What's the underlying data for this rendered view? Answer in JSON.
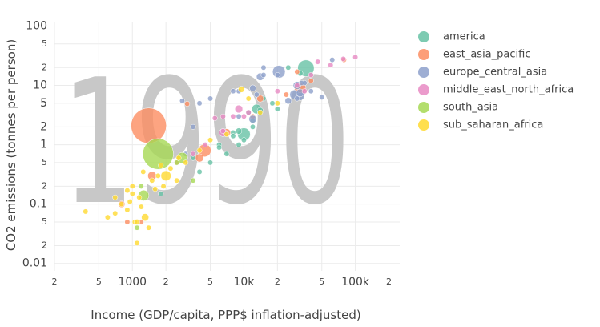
{
  "chart_data": {
    "type": "scatter",
    "year_label": "1990",
    "xlabel": "Income (GDP/capita, PPP$ inflation-adjusted)",
    "ylabel": "CO2 emissions (tonnes per person)",
    "log_x": true,
    "log_y": true,
    "grid": true,
    "legend": "right",
    "xlim": [
      200,
      250000
    ],
    "ylim": [
      0.0075,
      115
    ],
    "xticks": [
      {
        "value": 200,
        "label": "2"
      },
      {
        "value": 500,
        "label": "5"
      },
      1000,
      {
        "value": 2000,
        "label": "2"
      },
      {
        "value": 5000,
        "label": "5"
      },
      {
        "value": 10000,
        "label": "10k"
      },
      {
        "value": 20000,
        "label": "2"
      },
      {
        "value": 50000,
        "label": "5"
      },
      {
        "value": 100000,
        "label": "100k"
      },
      {
        "value": 200000,
        "label": "2"
      }
    ],
    "yticks": [
      0.01,
      {
        "value": 0.02,
        "label": "2"
      },
      {
        "value": 0.05,
        "label": "5"
      },
      0.1,
      {
        "value": 0.2,
        "label": "2"
      },
      {
        "value": 0.5,
        "label": "5"
      },
      1,
      2,
      5,
      10,
      {
        "value": 20,
        "label": "2"
      },
      {
        "value": 50,
        "label": "5"
      },
      100
    ],
    "series": [
      {
        "name": "america",
        "color": "#66c2a5",
        "x": [
          36000,
          32000,
          13000,
          10000,
          14000,
          12000,
          9000,
          15000,
          6000,
          5000,
          4000,
          1800,
          6000,
          8000,
          11000,
          9000,
          12000,
          10000,
          7000,
          3500,
          8000,
          18000,
          25000,
          14000,
          20000
        ],
        "values": [
          19.5,
          16,
          4,
          1.5,
          3.8,
          2.5,
          1.7,
          6,
          1.0,
          0.5,
          0.35,
          0.15,
          0.9,
          1.6,
          3.5,
          1.0,
          2.0,
          1.2,
          0.7,
          0.6,
          1.4,
          5,
          20,
          3.5,
          4
        ],
        "sizes": [
          250,
          28,
          85,
          150,
          33,
          13,
          35,
          20,
          22,
          7,
          6,
          7,
          9,
          10,
          3,
          4,
          4,
          3,
          5,
          4,
          7,
          10,
          1.2,
          2.4,
          0.3
        ]
      },
      {
        "name": "east_asia_pacific",
        "color": "#fc8d62",
        "x": [
          1400,
          32000,
          30000,
          4450,
          14000,
          1500,
          4000,
          7000,
          12000,
          24000,
          40000,
          800,
          900,
          3100,
          2500,
          1200,
          79000
        ],
        "values": [
          2.1,
          9,
          17,
          0.8,
          6,
          0.3,
          0.6,
          1.6,
          3,
          7,
          12,
          0.1,
          0.05,
          4.9,
          0.5,
          0.05,
          27
        ],
        "sizes": [
          1150,
          123,
          17,
          150,
          43,
          68,
          62,
          57,
          18,
          3.4,
          3,
          41,
          9,
          2.2,
          4,
          4,
          0.26
        ]
      },
      {
        "name": "europe_central_asia",
        "color": "#8da0cb",
        "x": [
          20600,
          28400,
          30000,
          32000,
          32000,
          25000,
          12000,
          14000,
          12000,
          15000,
          4000,
          13000,
          35000,
          30000,
          40000,
          20000,
          33000,
          62000,
          3500,
          2800,
          3000,
          15000,
          9000,
          8000,
          5000,
          9000,
          50000
        ],
        "values": [
          17,
          7,
          10,
          6.5,
          7.5,
          5.5,
          9,
          14,
          2.7,
          15,
          5,
          7,
          11,
          6,
          8,
          15,
          11,
          27,
          2,
          5.5,
          0.7,
          20,
          8,
          8,
          6,
          3,
          6.3
        ],
        "sizes": [
          148,
          80,
          57,
          58,
          57,
          39,
          38,
          52,
          54,
          16,
          20,
          23,
          15,
          8.5,
          4.2,
          10,
          10,
          0.4,
          3.3,
          4.4,
          5.3,
          1.6,
          3.7,
          7,
          3.5,
          5,
          6.7
        ]
      },
      {
        "name": "middle_east_north_africa",
        "color": "#e78ac3",
        "x": [
          100000,
          78000,
          60000,
          40000,
          46000,
          35000,
          9000,
          10000,
          6500,
          11000,
          4500,
          6500,
          5500,
          20000,
          6500,
          3500,
          30000,
          8000
        ],
        "values": [
          30,
          28,
          22,
          15,
          25,
          8,
          4,
          3,
          1.6,
          3.5,
          1,
          1.7,
          2.8,
          8,
          3,
          0.7,
          10,
          3
        ],
        "sizes": [
          0.5,
          1.8,
          2,
          16,
          0.5,
          1.8,
          56,
          18,
          57,
          26,
          24,
          8,
          12,
          4.5,
          3.5,
          12,
          4.3,
          2.7
        ]
      },
      {
        "name": "south_asia",
        "color": "#a6d854",
        "x": [
          1700,
          2800,
          1260,
          3500,
          1100,
          1200,
          2500
        ],
        "values": [
          0.7,
          0.6,
          0.14,
          0.25,
          0.04,
          0.2,
          0.5
        ],
        "sizes": [
          870,
          110,
          105,
          17,
          19,
          12,
          0.5
        ]
      },
      {
        "name": "sub_saharan_africa",
        "color": "#ffd92f",
        "x": [
          380,
          600,
          700,
          800,
          900,
          950,
          1000,
          1050,
          1100,
          1150,
          1200,
          1300,
          1400,
          1500,
          1600,
          1700,
          2000,
          2200,
          2500,
          3000,
          4000,
          5000,
          9500,
          11000,
          14000,
          20000,
          900,
          1800,
          2600,
          700,
          1100,
          1000,
          1250,
          1900,
          7000
        ],
        "values": [
          0.075,
          0.06,
          0.07,
          0.1,
          0.08,
          0.11,
          0.15,
          0.05,
          0.022,
          0.13,
          0.09,
          0.06,
          0.04,
          0.25,
          0.18,
          0.3,
          0.3,
          0.4,
          0.25,
          0.5,
          0.8,
          1.2,
          8.6,
          6,
          3.5,
          5,
          0.17,
          0.45,
          0.6,
          0.13,
          0.05,
          0.2,
          0.35,
          0.2,
          1.5
        ],
        "sizes": [
          5,
          8,
          6,
          10,
          4,
          12,
          9,
          15,
          5,
          7,
          11,
          50,
          6,
          25,
          9,
          14,
          95,
          24,
          5,
          12,
          2,
          3,
          36,
          1,
          1.1,
          0.1,
          20,
          3,
          13,
          3,
          30,
          5,
          4,
          6,
          1
        ]
      }
    ]
  }
}
